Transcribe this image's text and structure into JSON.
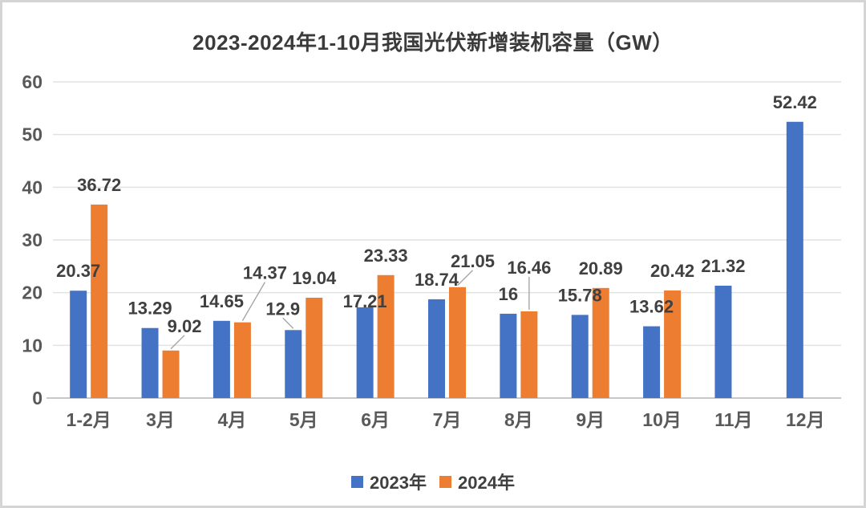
{
  "title": {
    "text": "2023-2024年1-10月我国光伏新增装机容量（GW）"
  },
  "legend": {
    "items": [
      {
        "label": "2023年",
        "color": "#4472C4"
      },
      {
        "label": "2024年",
        "color": "#ED7D31"
      }
    ]
  },
  "colors": {
    "series_2023": "#4472C4",
    "series_2024": "#ED7D31",
    "gridline": "#e2e2e2",
    "axis_line": "#c9c7c7",
    "axis_text": "#595959",
    "data_label": "#404040",
    "leader_line": "#a6a6a6",
    "title_text": "#3b3b3b",
    "frame_border": "#d5d5d5",
    "background": "#ffffff"
  },
  "chart_data": {
    "type": "bar",
    "title": "2023-2024年1-10月我国光伏新增装机容量（GW）",
    "categories": [
      "1-2月",
      "3月",
      "4月",
      "5月",
      "6月",
      "7月",
      "8月",
      "9月",
      "10月",
      "11月",
      "12月"
    ],
    "series": [
      {
        "name": "2023年",
        "color": "#4472C4",
        "values": [
          20.37,
          13.29,
          14.65,
          12.9,
          17.21,
          18.74,
          16,
          15.78,
          13.62,
          21.32,
          52.42
        ]
      },
      {
        "name": "2024年",
        "color": "#ED7D31",
        "values": [
          36.72,
          9.02,
          14.37,
          19.04,
          23.33,
          21.05,
          16.46,
          20.89,
          20.42,
          null,
          null
        ]
      }
    ],
    "ylabel": "",
    "xlabel": "",
    "ylim": [
      0,
      60
    ],
    "yticks": [
      0,
      10,
      20,
      30,
      40,
      50,
      60
    ],
    "grid": true,
    "data_labels": true,
    "legend_position": "bottom"
  }
}
